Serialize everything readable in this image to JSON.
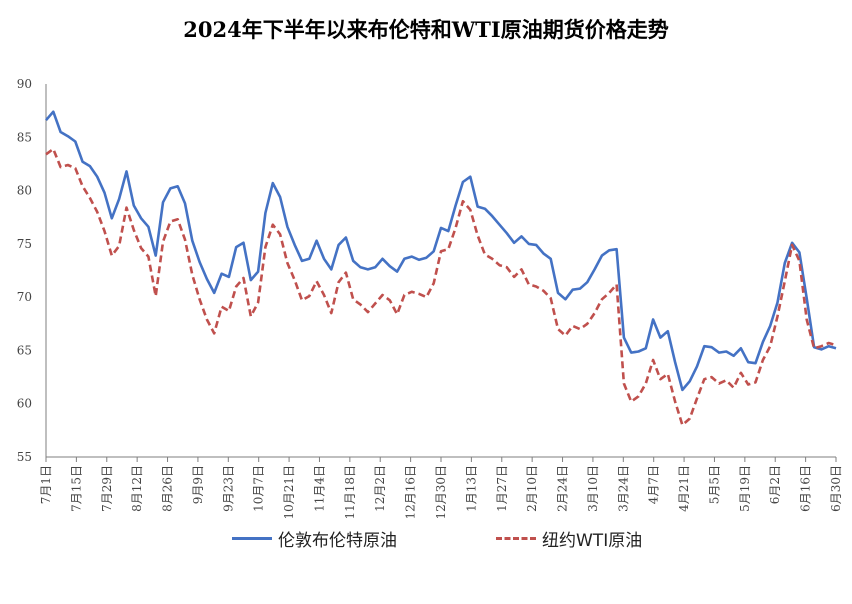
{
  "chart_data": {
    "type": "line",
    "title": "2024年下半年以来布伦特和WTI原油期货价格走势",
    "xlabel": "",
    "ylabel": "",
    "ylim": [
      55,
      90
    ],
    "yticks": [
      55,
      60,
      65,
      70,
      75,
      80,
      85,
      90
    ],
    "x_tick_labels": [
      "7月1日",
      "7月15日",
      "7月29日",
      "8月12日",
      "8月26日",
      "9月9日",
      "9月23日",
      "10月7日",
      "10月21日",
      "11月4日",
      "11月18日",
      "12月2日",
      "12月16日",
      "12月30日",
      "1月13日",
      "1月27日",
      "2月10日",
      "2月24日",
      "3月10日",
      "3月24日",
      "4月7日",
      "4月21日",
      "5月5日",
      "5月19日",
      "6月2日",
      "6月16日",
      "6月30日"
    ],
    "grid": false,
    "legend_position": "bottom",
    "series": [
      {
        "name": "伦敦布伦特原油",
        "color": "#4472c4",
        "style": "solid",
        "values": [
          86.6,
          87.4,
          85.5,
          85.1,
          84.6,
          82.7,
          82.3,
          81.3,
          79.8,
          77.4,
          79.2,
          81.8,
          78.6,
          77.4,
          76.6,
          73.9,
          78.9,
          80.2,
          80.4,
          78.8,
          75.3,
          73.3,
          71.7,
          70.4,
          72.2,
          71.9,
          74.7,
          75.1,
          71.6,
          72.4,
          77.9,
          80.7,
          79.4,
          76.6,
          74.9,
          73.4,
          73.6,
          75.3,
          73.6,
          72.6,
          74.9,
          75.6,
          73.4,
          72.8,
          72.6,
          72.8,
          73.6,
          72.9,
          72.4,
          73.6,
          73.8,
          73.5,
          73.7,
          74.3,
          76.5,
          76.2,
          78.6,
          80.8,
          81.3,
          78.5,
          78.3,
          77.6,
          76.8,
          76.0,
          75.1,
          75.7,
          75.0,
          74.9,
          74.1,
          73.6,
          70.4,
          69.8,
          70.7,
          70.8,
          71.4,
          72.6,
          73.9,
          74.4,
          74.5,
          66.2,
          64.8,
          64.9,
          65.2,
          67.9,
          66.2,
          66.8,
          63.9,
          61.3,
          62.1,
          63.5,
          65.4,
          65.3,
          64.8,
          64.9,
          64.5,
          65.2,
          63.9,
          63.8,
          65.8,
          67.3,
          69.5,
          73.2,
          75.1,
          74.2,
          69.9,
          65.3,
          65.1,
          65.4,
          65.2
        ]
      },
      {
        "name": "纽约WTI原油",
        "color": "#c0504d",
        "style": "dashed",
        "values": [
          83.4,
          83.9,
          82.2,
          82.4,
          82.1,
          80.4,
          79.3,
          78.0,
          76.2,
          73.9,
          74.8,
          78.4,
          76.3,
          74.6,
          73.8,
          70.1,
          75.2,
          77.1,
          77.3,
          75.4,
          72.1,
          69.8,
          67.9,
          66.6,
          69.1,
          68.7,
          71.0,
          71.8,
          68.2,
          69.5,
          74.7,
          76.8,
          75.9,
          73.2,
          71.6,
          69.7,
          70.1,
          71.5,
          70.2,
          68.5,
          71.4,
          72.3,
          69.8,
          69.3,
          68.6,
          69.4,
          70.2,
          69.7,
          68.4,
          70.2,
          70.5,
          70.3,
          70.0,
          71.3,
          74.3,
          74.5,
          76.5,
          79.0,
          78.2,
          75.8,
          74.0,
          73.6,
          73.0,
          72.8,
          71.9,
          72.6,
          71.2,
          71.0,
          70.6,
          69.9,
          67.0,
          66.4,
          67.3,
          67.0,
          67.5,
          68.5,
          69.8,
          70.4,
          71.2,
          61.9,
          60.2,
          60.7,
          61.9,
          64.1,
          62.3,
          62.8,
          60.2,
          58.0,
          58.6,
          60.5,
          62.3,
          62.5,
          61.9,
          62.2,
          61.5,
          62.9,
          61.8,
          62.0,
          64.1,
          65.4,
          68.2,
          71.5,
          74.9,
          73.4,
          67.9,
          65.2,
          65.4,
          65.7,
          65.5
        ]
      }
    ]
  }
}
